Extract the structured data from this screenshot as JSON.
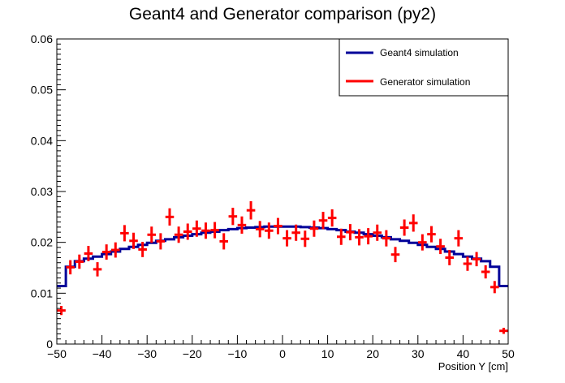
{
  "chart_data": {
    "type": "scatter",
    "title": "Geant4 and Generator comparison (py2)",
    "xlabel": "Position Y [cm]",
    "ylabel": "",
    "xlim": [
      -50,
      50
    ],
    "ylim": [
      0,
      0.06
    ],
    "xticks": [
      -50,
      -40,
      -30,
      -20,
      -10,
      0,
      10,
      20,
      30,
      40,
      50
    ],
    "xtick_labels": [
      "−50",
      "−40",
      "−30",
      "−20",
      "−10",
      "0",
      "10",
      "20",
      "30",
      "40",
      "50"
    ],
    "yticks": [
      0,
      0.01,
      0.02,
      0.03,
      0.04,
      0.05,
      0.06
    ],
    "ytick_labels": [
      "0",
      "0.01",
      "0.02",
      "0.03",
      "0.04",
      "0.05",
      "0.06"
    ],
    "grid": false,
    "legend_position": "top-right",
    "bin_width": 2,
    "series": [
      {
        "name": "Geant4 simulation",
        "style": "step",
        "color": "#000099",
        "x": [
          -49,
          -47,
          -45,
          -43,
          -41,
          -39,
          -37,
          -35,
          -33,
          -31,
          -29,
          -27,
          -25,
          -23,
          -21,
          -19,
          -17,
          -15,
          -13,
          -11,
          -9,
          -7,
          -5,
          -3,
          -1,
          1,
          3,
          5,
          7,
          9,
          11,
          13,
          15,
          17,
          19,
          21,
          23,
          25,
          27,
          29,
          31,
          33,
          35,
          37,
          39,
          41,
          43,
          45,
          47,
          49
        ],
        "values": [
          0.0114,
          0.0152,
          0.0163,
          0.0168,
          0.0172,
          0.0177,
          0.0182,
          0.0187,
          0.0191,
          0.0195,
          0.0199,
          0.0203,
          0.0206,
          0.021,
          0.0213,
          0.0216,
          0.0219,
          0.0221,
          0.0224,
          0.0226,
          0.0228,
          0.0229,
          0.023,
          0.0231,
          0.0231,
          0.0231,
          0.0231,
          0.023,
          0.0229,
          0.0228,
          0.0226,
          0.0224,
          0.0221,
          0.0219,
          0.0216,
          0.0213,
          0.021,
          0.0206,
          0.0203,
          0.0199,
          0.0195,
          0.0191,
          0.0187,
          0.0182,
          0.0177,
          0.0172,
          0.0168,
          0.0163,
          0.0152,
          0.0114
        ]
      },
      {
        "name": "Generator simulation",
        "style": "errorbar",
        "color": "#ff0000",
        "x": [
          -49,
          -47,
          -45,
          -43,
          -41,
          -39,
          -37,
          -35,
          -33,
          -31,
          -29,
          -27,
          -25,
          -23,
          -21,
          -19,
          -17,
          -15,
          -13,
          -11,
          -9,
          -7,
          -5,
          -3,
          -1,
          1,
          3,
          5,
          7,
          9,
          11,
          13,
          15,
          17,
          19,
          21,
          23,
          25,
          27,
          29,
          31,
          33,
          35,
          37,
          39,
          41,
          43,
          45,
          47,
          49
        ],
        "values": [
          0.0066,
          0.0151,
          0.0162,
          0.0178,
          0.0147,
          0.0181,
          0.0185,
          0.0218,
          0.0203,
          0.0186,
          0.0215,
          0.0202,
          0.025,
          0.0215,
          0.0221,
          0.0227,
          0.0223,
          0.0224,
          0.0202,
          0.0251,
          0.0234,
          0.0263,
          0.0226,
          0.0223,
          0.0232,
          0.0208,
          0.0219,
          0.0207,
          0.0227,
          0.0243,
          0.0248,
          0.0211,
          0.022,
          0.021,
          0.0212,
          0.0219,
          0.0208,
          0.0176,
          0.0229,
          0.0238,
          0.02,
          0.0216,
          0.0192,
          0.017,
          0.0208,
          0.0158,
          0.0167,
          0.0142,
          0.0112,
          0.0026
        ],
        "errors": [
          0.0009,
          0.0014,
          0.0014,
          0.0015,
          0.0014,
          0.0015,
          0.0015,
          0.0016,
          0.0016,
          0.0015,
          0.0016,
          0.0016,
          0.0017,
          0.0016,
          0.0016,
          0.0016,
          0.0016,
          0.0016,
          0.0016,
          0.0017,
          0.0017,
          0.0018,
          0.0016,
          0.0016,
          0.0016,
          0.0016,
          0.0016,
          0.0016,
          0.0016,
          0.0017,
          0.0017,
          0.0016,
          0.0016,
          0.0016,
          0.0016,
          0.0016,
          0.0016,
          0.0015,
          0.0016,
          0.0017,
          0.0016,
          0.0016,
          0.0015,
          0.0015,
          0.0016,
          0.0014,
          0.0014,
          0.0013,
          0.0012,
          0.0006
        ]
      }
    ]
  }
}
